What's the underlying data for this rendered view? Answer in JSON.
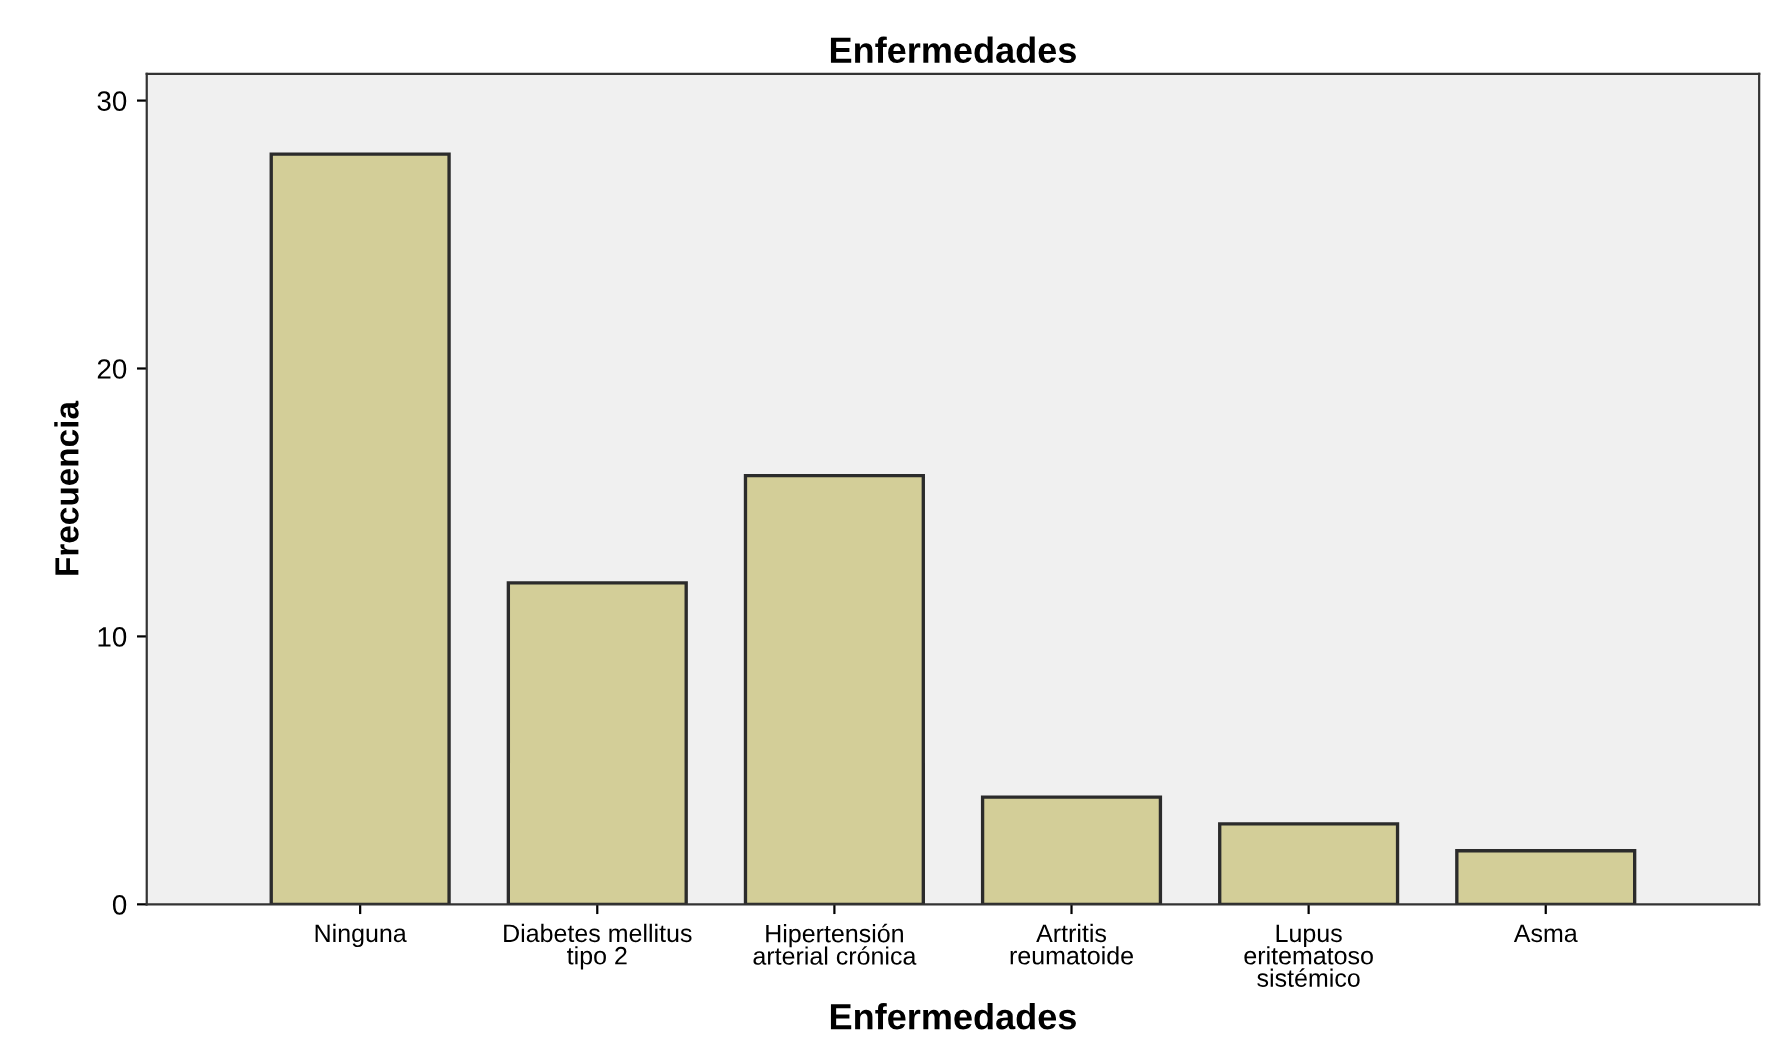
{
  "chart_data": {
    "type": "bar",
    "title": "Enfermedades",
    "xlabel": "Enfermedades",
    "ylabel": "Frecuencia",
    "categories": [
      "Ninguna",
      "Diabetes mellitus\ntipo 2",
      "Hipertensión\narterial crónica",
      "Artritis\nreumatoide",
      "Lupus\neritematoso\nsistémico",
      "Asma"
    ],
    "values": [
      28,
      12,
      16,
      4,
      3,
      2
    ],
    "color": "#d3ce98",
    "ylim": [
      0,
      31
    ],
    "yticks": [
      0,
      10,
      20,
      30
    ],
    "grid": false,
    "legend": false
  }
}
